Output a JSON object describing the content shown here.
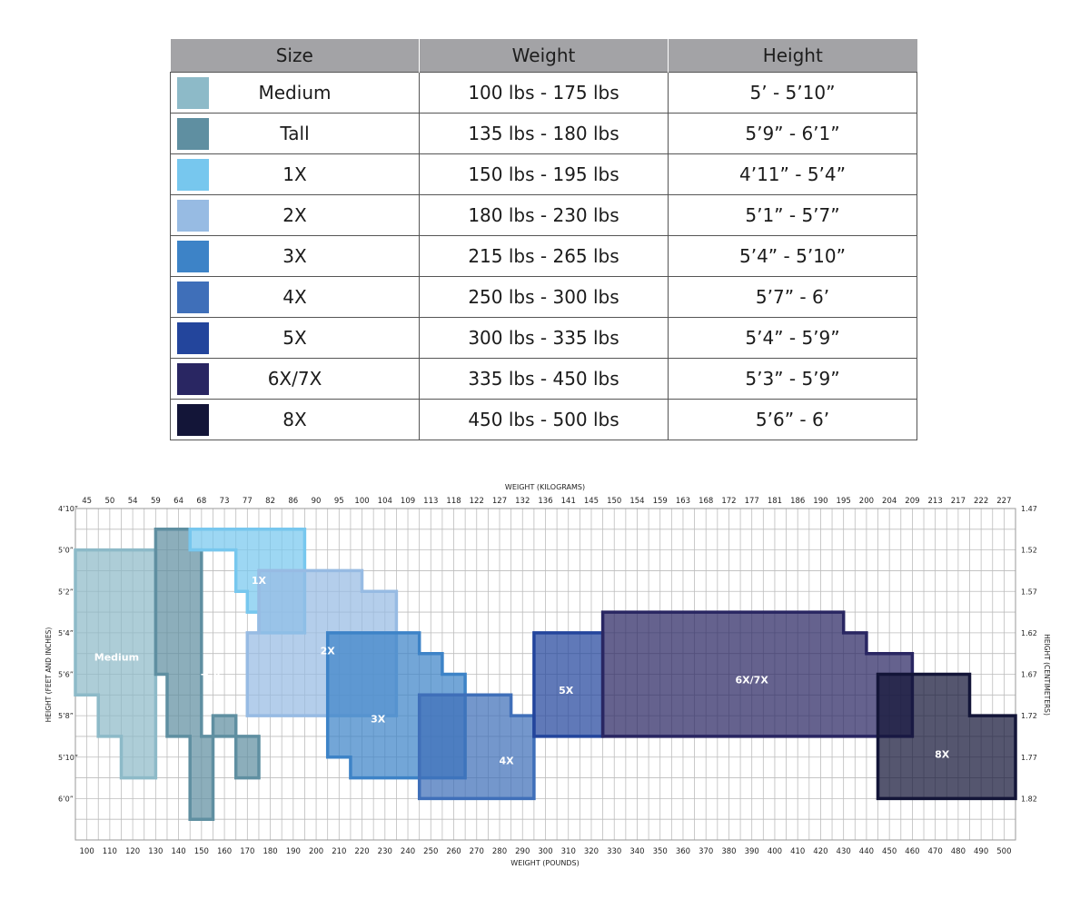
{
  "table": {
    "headers": [
      "Size",
      "Weight",
      "Height"
    ],
    "rows": [
      {
        "size": "Medium",
        "weight": "100 lbs - 175 lbs",
        "height": "5’ -  5’10”",
        "color": "#8dbac8"
      },
      {
        "size": "Tall",
        "weight": "135 lbs - 180 lbs",
        "height": "5’9” - 6’1”",
        "color": "#5f8fa1"
      },
      {
        "size": "1X",
        "weight": "150 lbs - 195 lbs",
        "height": "4’11” -  5’4”",
        "color": "#77c7ee"
      },
      {
        "size": "2X",
        "weight": "180 lbs - 230 lbs",
        "height": "5’1” - 5’7”",
        "color": "#97bbe3"
      },
      {
        "size": "3X",
        "weight": "215 lbs - 265 lbs",
        "height": "5’4” - 5’10”",
        "color": "#3d83c7"
      },
      {
        "size": "4X",
        "weight": "250 lbs - 300 lbs",
        "height": "5’7” - 6’",
        "color": "#3f6fb9"
      },
      {
        "size": "5X",
        "weight": "300 lbs - 335 lbs",
        "height": "5’4” - 5’9”",
        "color": "#23459c"
      },
      {
        "size": "6X/7X",
        "weight": "335 lbs - 450 lbs",
        "height": "5’3” - 5’9”",
        "color": "#292662"
      },
      {
        "size": "8X",
        "weight": "450 lbs - 500 lbs",
        "height": "5’6” - 6’",
        "color": "#131538"
      }
    ]
  },
  "chart_data": {
    "type": "area",
    "xlabel_top": "WEIGHT (KILOGRAMS)",
    "xlabel_bottom": "WEIGHT (POUNDS)",
    "ylabel_left": "HEIGHT (FEET AND INCHES)",
    "ylabel_right": "HEIGHT (CENTIMETERS)",
    "x_range_lbs": [
      95,
      505
    ],
    "y_range_in": [
      58,
      74
    ],
    "x_ticks_bottom": [
      "100",
      "110",
      "120",
      "130",
      "140",
      "150",
      "160",
      "170",
      "180",
      "190",
      "200",
      "210",
      "220",
      "230",
      "240",
      "250",
      "260",
      "270",
      "280",
      "290",
      "300",
      "310",
      "320",
      "330",
      "340",
      "350",
      "360",
      "370",
      "380",
      "390",
      "400",
      "410",
      "420",
      "430",
      "440",
      "450",
      "460",
      "470",
      "480",
      "490",
      "500"
    ],
    "x_ticks_top": [
      "45",
      "50",
      "54",
      "59",
      "64",
      "68",
      "73",
      "77",
      "82",
      "86",
      "90",
      "95",
      "100",
      "104",
      "109",
      "113",
      "118",
      "122",
      "127",
      "132",
      "136",
      "141",
      "145",
      "150",
      "154",
      "159",
      "163",
      "168",
      "172",
      "177",
      "181",
      "186",
      "190",
      "195",
      "200",
      "204",
      "209",
      "213",
      "217",
      "222",
      "227"
    ],
    "y_ticks_left": [
      {
        "in": 58,
        "label": "4’10”"
      },
      {
        "in": 60,
        "label": "5’0”"
      },
      {
        "in": 62,
        "label": "5’2”"
      },
      {
        "in": 64,
        "label": "5’4”"
      },
      {
        "in": 66,
        "label": "5’6”"
      },
      {
        "in": 68,
        "label": "5’8”"
      },
      {
        "in": 70,
        "label": "5’10”"
      },
      {
        "in": 72,
        "label": "6’0”"
      }
    ],
    "y_ticks_right": [
      {
        "in": 58,
        "label": "1.47"
      },
      {
        "in": 60,
        "label": "1.52"
      },
      {
        "in": 62,
        "label": "1.57"
      },
      {
        "in": 64,
        "label": "1.62"
      },
      {
        "in": 66,
        "label": "1.67"
      },
      {
        "in": 68,
        "label": "1.72"
      },
      {
        "in": 70,
        "label": "1.77"
      },
      {
        "in": 72,
        "label": "1.82"
      }
    ],
    "grid": true,
    "series": [
      {
        "name": "Medium",
        "fill": "#8dbac8",
        "stroke": "#8dbac8",
        "label_at": [
          113,
          65.2
        ],
        "points": [
          [
            95,
            60
          ],
          [
            130,
            60
          ],
          [
            130,
            71
          ],
          [
            115,
            71
          ],
          [
            115,
            69
          ],
          [
            105,
            69
          ],
          [
            105,
            67
          ],
          [
            95,
            67
          ]
        ]
      },
      {
        "name": "Tall",
        "fill": "#5f8fa1",
        "stroke": "#5f8fa1",
        "label_at": [
          154,
          66.2
        ],
        "points": [
          [
            130,
            59
          ],
          [
            145,
            59
          ],
          [
            145,
            60
          ],
          [
            150,
            60
          ],
          [
            150,
            69
          ],
          [
            175,
            69
          ],
          [
            175,
            71
          ],
          [
            165,
            71
          ],
          [
            165,
            68
          ],
          [
            155,
            68
          ],
          [
            155,
            73
          ],
          [
            145,
            73
          ],
          [
            145,
            69
          ],
          [
            135,
            69
          ],
          [
            135,
            66
          ],
          [
            130,
            66
          ]
        ]
      },
      {
        "name": "1X",
        "fill": "#77c7ee",
        "stroke": "#77c7ee",
        "label_at": [
          175,
          61.5
        ],
        "points": [
          [
            145,
            59
          ],
          [
            195,
            59
          ],
          [
            195,
            64
          ],
          [
            175,
            64
          ],
          [
            175,
            63
          ],
          [
            170,
            63
          ],
          [
            170,
            62
          ],
          [
            165,
            62
          ],
          [
            165,
            60
          ],
          [
            145,
            60
          ]
        ]
      },
      {
        "name": "2X",
        "fill": "#97bbe3",
        "stroke": "#97bbe3",
        "label_at": [
          205,
          64.9
        ],
        "points": [
          [
            175,
            61
          ],
          [
            220,
            61
          ],
          [
            220,
            62
          ],
          [
            235,
            62
          ],
          [
            235,
            68
          ],
          [
            170,
            68
          ],
          [
            170,
            64
          ],
          [
            175,
            64
          ]
        ]
      },
      {
        "name": "3X",
        "fill": "#3d83c7",
        "stroke": "#3d83c7",
        "label_at": [
          227,
          68.2
        ],
        "points": [
          [
            205,
            64
          ],
          [
            245,
            64
          ],
          [
            245,
            65
          ],
          [
            255,
            65
          ],
          [
            255,
            66
          ],
          [
            265,
            66
          ],
          [
            265,
            71
          ],
          [
            215,
            71
          ],
          [
            215,
            70
          ],
          [
            205,
            70
          ]
        ]
      },
      {
        "name": "4X",
        "fill": "#3f6fb9",
        "stroke": "#3f6fb9",
        "label_at": [
          283,
          70.2
        ],
        "points": [
          [
            245,
            67
          ],
          [
            285,
            67
          ],
          [
            285,
            68
          ],
          [
            295,
            68
          ],
          [
            295,
            72
          ],
          [
            245,
            72
          ]
        ]
      },
      {
        "name": "5X",
        "fill": "#23459c",
        "stroke": "#23459c",
        "label_at": [
          309,
          66.8
        ],
        "points": [
          [
            295,
            64
          ],
          [
            325,
            64
          ],
          [
            325,
            69
          ],
          [
            295,
            69
          ]
        ]
      },
      {
        "name": "6X/7X",
        "fill": "#292662",
        "stroke": "#292662",
        "label_at": [
          390,
          66.3
        ],
        "points": [
          [
            325,
            63
          ],
          [
            430,
            63
          ],
          [
            430,
            64
          ],
          [
            440,
            64
          ],
          [
            440,
            65
          ],
          [
            460,
            65
          ],
          [
            460,
            69
          ],
          [
            325,
            69
          ]
        ]
      },
      {
        "name": "8X",
        "fill": "#131538",
        "stroke": "#131538",
        "label_at": [
          473,
          69.9
        ],
        "points": [
          [
            445,
            66
          ],
          [
            485,
            66
          ],
          [
            485,
            68
          ],
          [
            505,
            68
          ],
          [
            505,
            72
          ],
          [
            445,
            72
          ]
        ]
      }
    ]
  }
}
